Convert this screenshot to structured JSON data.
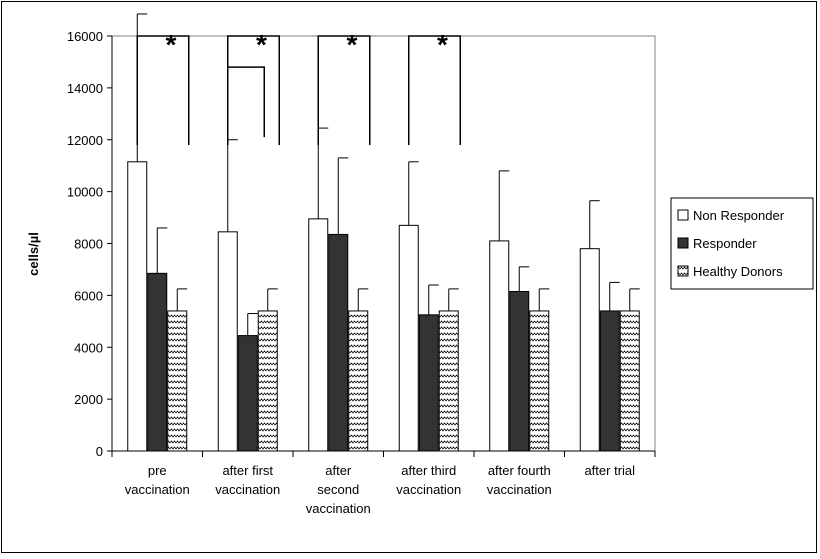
{
  "chart_data": {
    "type": "bar",
    "ylabel": "cells/µl",
    "xlabel": "",
    "ylim": [
      0,
      16000
    ],
    "y_ticks": [
      "0",
      "2000",
      "4000",
      "6000",
      "8000",
      "10000",
      "12000",
      "14000",
      "16000"
    ],
    "grid": false,
    "legend_position": "right",
    "categories": [
      [
        "pre",
        "vaccination"
      ],
      [
        "after first",
        "vaccination"
      ],
      [
        "after",
        "second",
        "vaccination"
      ],
      [
        "after third",
        "vaccination"
      ],
      [
        "after fourth",
        "vaccination"
      ],
      [
        "after trial"
      ]
    ],
    "series": [
      {
        "name": "Non Responder",
        "pattern": "white",
        "values": [
          11150,
          8450,
          8950,
          8700,
          8100,
          7800
        ],
        "errors": [
          5700,
          3550,
          3500,
          2450,
          2700,
          1850
        ]
      },
      {
        "name": "Responder",
        "pattern": "dark",
        "values": [
          6850,
          4450,
          8350,
          5250,
          6150,
          5400
        ],
        "errors": [
          1750,
          850,
          2950,
          1150,
          950,
          1100
        ]
      },
      {
        "name": "Healthy Donors",
        "pattern": "zigzag",
        "values": [
          5400,
          5400,
          5400,
          5400,
          5400,
          5400
        ],
        "errors": [
          850,
          850,
          850,
          850,
          850,
          850
        ]
      }
    ],
    "significance": [
      {
        "group": 0,
        "marker": "*"
      },
      {
        "group": 1,
        "marker": "*"
      },
      {
        "group": 2,
        "marker": "*"
      },
      {
        "group": 3,
        "marker": "*"
      }
    ],
    "colors": {
      "white_fill": "#ffffff",
      "dark_fill": "#333333",
      "outline": "#000000"
    }
  }
}
